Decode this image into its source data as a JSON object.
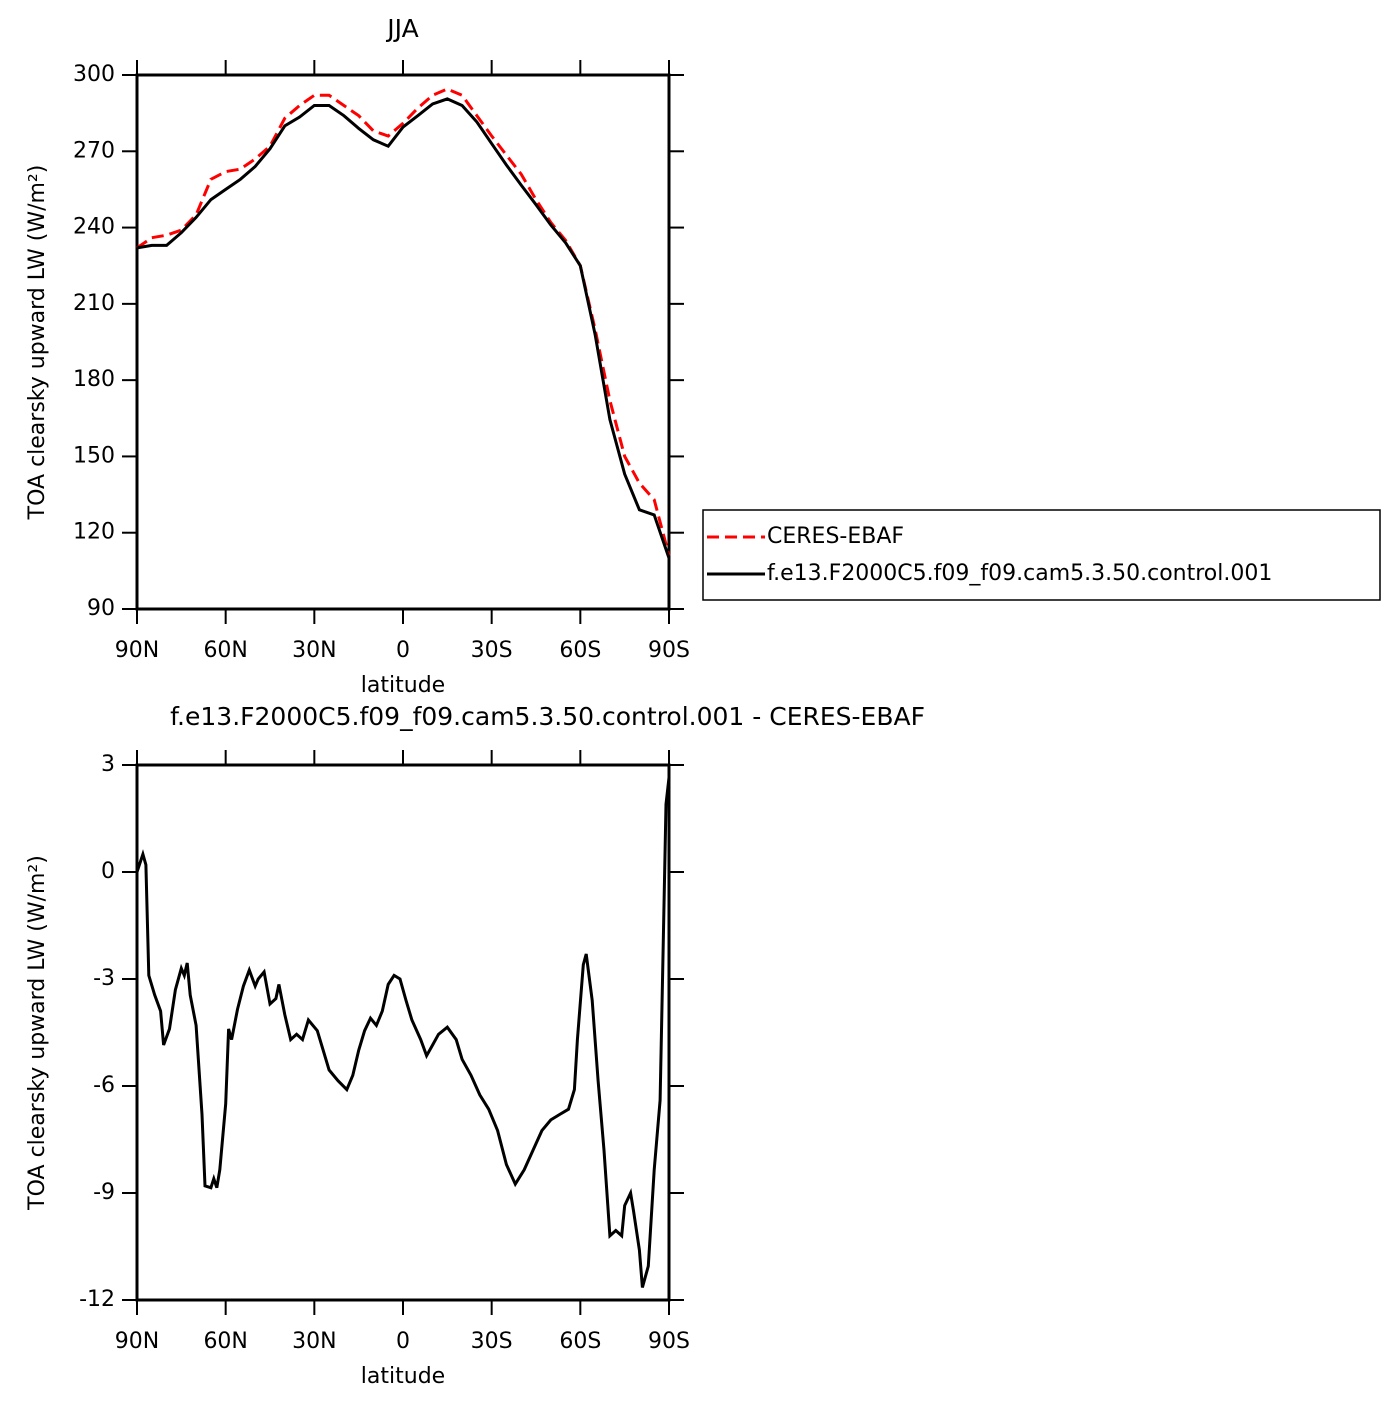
{
  "chart_data": [
    {
      "type": "line",
      "title": "JJA",
      "x_label": "latitude",
      "y_label": "TOA clearsky upward LW (W/m²)",
      "x": [
        90,
        85,
        80,
        75,
        70,
        65,
        60,
        55,
        50,
        45,
        40,
        35,
        30,
        25,
        20,
        15,
        10,
        5,
        0,
        -5,
        -10,
        -15,
        -20,
        -25,
        -30,
        -35,
        -40,
        -45,
        -50,
        -55,
        -60,
        -65,
        -70,
        -75,
        -80,
        -85,
        -90
      ],
      "series": [
        {
          "name": "CERES-EBAF",
          "color": "#ff0000",
          "style": "dashed",
          "values": [
            232,
            236,
            237,
            239,
            245,
            259,
            262,
            263,
            267,
            272,
            283,
            288,
            292,
            292,
            288,
            284,
            278,
            276,
            281,
            287,
            292,
            294.5,
            292,
            284,
            276,
            268.5,
            261,
            251,
            242,
            235,
            225,
            200,
            172,
            150,
            139.5,
            133,
            111
          ]
        },
        {
          "name": "f.e13.F2000C5.f09_f09.cam5.3.50.control.001",
          "color": "#000000",
          "style": "solid",
          "values": [
            232,
            233,
            233,
            238,
            244,
            251,
            255,
            259,
            264,
            271,
            280,
            283.5,
            288,
            288,
            284,
            279,
            274.5,
            272,
            279.5,
            284,
            288.6,
            290.6,
            288,
            281.5,
            273,
            264.6,
            256.7,
            249,
            241,
            234,
            225,
            198,
            164.5,
            143,
            129,
            127,
            110
          ]
        }
      ],
      "xlim": [
        90,
        -90
      ],
      "xticks": [
        {
          "value": 90,
          "label": "90N"
        },
        {
          "value": 60,
          "label": "60N"
        },
        {
          "value": 30,
          "label": "30N"
        },
        0,
        {
          "value": -30,
          "label": "30S"
        },
        {
          "value": -60,
          "label": "60S"
        },
        {
          "value": -90,
          "label": "90S"
        }
      ],
      "ylim": [
        90,
        300
      ],
      "yticks": [
        90,
        120,
        150,
        180,
        210,
        240,
        270,
        300
      ],
      "legend": "right"
    },
    {
      "type": "line",
      "title": "f.e13.F2000C5.f09_f09.cam5.3.50.control.001 - CERES-EBAF",
      "x_label": "latitude",
      "y_label": "TOA clearsky upward LW (W/m²)",
      "x": [
        90,
        88,
        87,
        86,
        84,
        82,
        81,
        79,
        77,
        75,
        74,
        73,
        72,
        70,
        68,
        67,
        65,
        64,
        63,
        62,
        60,
        59,
        58,
        56,
        54,
        52,
        50,
        49,
        47,
        45,
        43,
        42,
        40,
        38,
        36,
        34,
        32,
        29,
        27,
        25,
        22,
        19,
        17,
        15,
        13,
        11,
        9,
        7,
        5,
        3,
        1,
        -1,
        -3,
        -6,
        -8,
        -10,
        -12,
        -15,
        -18,
        -20,
        -23,
        -26,
        -29,
        -32,
        -35,
        -38,
        -41,
        -44,
        -47,
        -50,
        -53,
        -56,
        -58,
        -59,
        -61,
        -62,
        -64,
        -66,
        -68,
        -70,
        -72,
        -74,
        -75,
        -77,
        -78,
        -80,
        -81,
        -83,
        -85,
        -87,
        -88,
        -89,
        -90
      ],
      "values": [
        0,
        0.5,
        0.2,
        -2.9,
        -3.45,
        -3.9,
        -4.85,
        -4.4,
        -3.3,
        -2.7,
        -2.9,
        -2.55,
        -3.45,
        -4.3,
        -6.8,
        -8.8,
        -8.85,
        -8.6,
        -8.85,
        -8.35,
        -6.5,
        -4.4,
        -4.7,
        -3.85,
        -3.2,
        -2.75,
        -3.2,
        -3,
        -2.8,
        -3.7,
        -3.55,
        -3.15,
        -4,
        -4.7,
        -4.55,
        -4.7,
        -4.15,
        -4.45,
        -5,
        -5.55,
        -5.85,
        -6.1,
        -5.7,
        -5,
        -4.45,
        -4.1,
        -4.3,
        -3.9,
        -3.15,
        -2.9,
        -3,
        -3.6,
        -4.15,
        -4.7,
        -5.15,
        -4.85,
        -4.55,
        -4.35,
        -4.7,
        -5.25,
        -5.7,
        -6.25,
        -6.65,
        -7.25,
        -8.2,
        -8.75,
        -8.35,
        -7.8,
        -7.25,
        -6.95,
        -6.8,
        -6.65,
        -6.1,
        -4.7,
        -2.6,
        -2.3,
        -3.6,
        -5.85,
        -7.8,
        -10.2,
        -10.05,
        -10.2,
        -9.35,
        -9,
        -9.5,
        -10.6,
        -11.65,
        -11.05,
        -8.35,
        -6.4,
        -2.2,
        1.9,
        2.65
      ],
      "color": "#000000",
      "xlim": [
        90,
        -90
      ],
      "xticks": [
        {
          "value": 90,
          "label": "90N"
        },
        {
          "value": 60,
          "label": "60N"
        },
        {
          "value": 30,
          "label": "30N"
        },
        0,
        {
          "value": -30,
          "label": "30S"
        },
        {
          "value": -60,
          "label": "60S"
        },
        {
          "value": -90,
          "label": "90S"
        }
      ],
      "ylim": [
        -12,
        3
      ],
      "yticks": [
        -12,
        -9,
        -6,
        -3,
        0,
        3
      ]
    }
  ]
}
